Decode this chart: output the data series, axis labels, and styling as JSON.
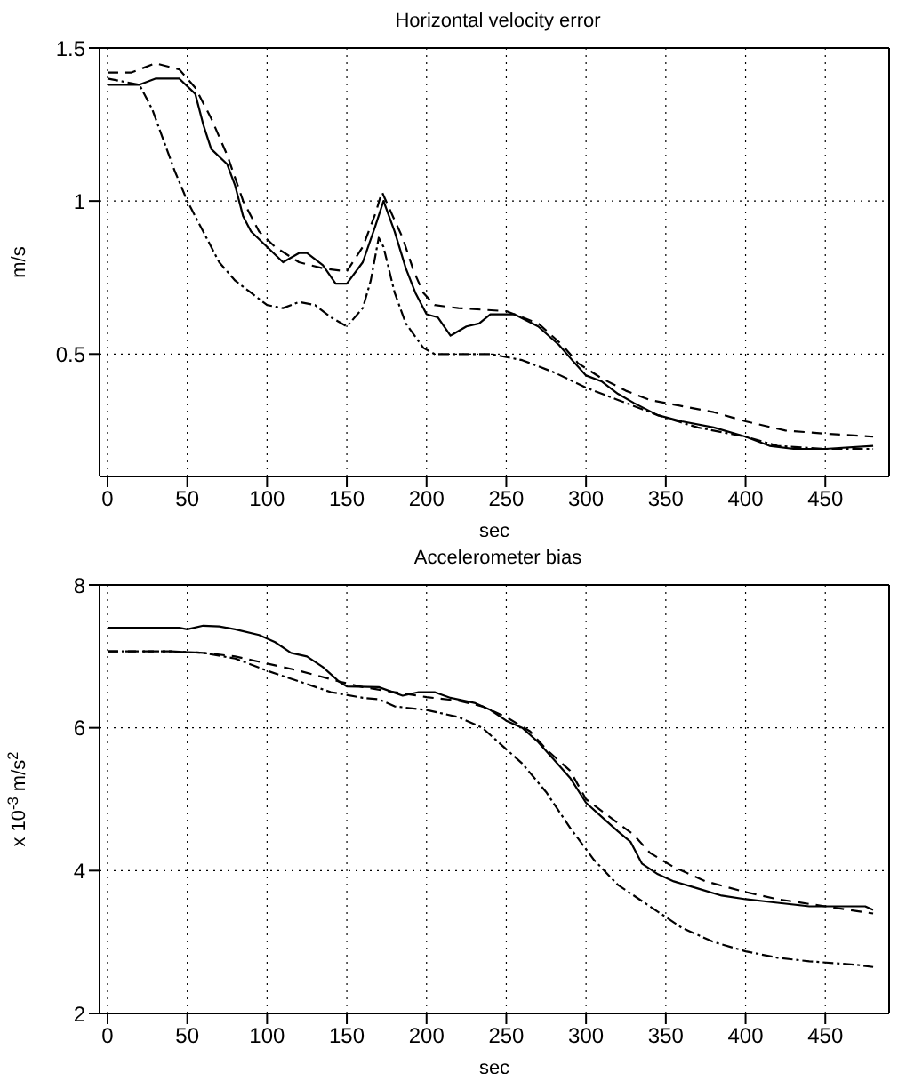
{
  "chart_data": [
    {
      "type": "line",
      "title": "Horizontal velocity error",
      "xlabel": "sec",
      "ylabel": "m/s",
      "xlim": [
        -5,
        490
      ],
      "ylim": [
        0.1,
        1.5
      ],
      "xticks": [
        0,
        50,
        100,
        150,
        200,
        250,
        300,
        350,
        400,
        450
      ],
      "yticks": [
        0.5,
        1,
        1.5
      ],
      "grid": true,
      "marker": "none",
      "series": [
        {
          "color": "#000000",
          "line_style": "solid",
          "x": [
            0,
            20,
            30,
            45,
            55,
            60,
            65,
            75,
            80,
            85,
            90,
            100,
            110,
            120,
            125,
            135,
            143,
            150,
            160,
            168,
            173,
            180,
            187,
            193,
            200,
            207,
            215,
            225,
            233,
            240,
            255,
            270,
            283,
            293,
            300,
            310,
            320,
            330,
            345,
            360,
            380,
            400,
            415,
            430,
            450,
            480
          ],
          "values": [
            1.38,
            1.38,
            1.4,
            1.4,
            1.35,
            1.25,
            1.17,
            1.12,
            1.05,
            0.95,
            0.9,
            0.85,
            0.8,
            0.83,
            0.83,
            0.79,
            0.73,
            0.73,
            0.8,
            0.92,
            1.0,
            0.9,
            0.78,
            0.7,
            0.63,
            0.62,
            0.56,
            0.59,
            0.6,
            0.63,
            0.63,
            0.59,
            0.53,
            0.47,
            0.43,
            0.41,
            0.37,
            0.34,
            0.3,
            0.28,
            0.26,
            0.23,
            0.2,
            0.19,
            0.19,
            0.2
          ]
        },
        {
          "color": "#000000",
          "line_style": "dashed",
          "x": [
            0,
            15,
            30,
            45,
            55,
            65,
            75,
            85,
            95,
            105,
            120,
            135,
            150,
            160,
            168,
            172,
            178,
            185,
            192,
            198,
            205,
            220,
            250,
            270,
            285,
            295,
            310,
            325,
            340,
            360,
            380,
            400,
            425,
            450,
            480
          ],
          "values": [
            1.42,
            1.42,
            1.45,
            1.43,
            1.37,
            1.27,
            1.15,
            1.0,
            0.9,
            0.85,
            0.8,
            0.78,
            0.77,
            0.85,
            0.96,
            1.03,
            0.96,
            0.88,
            0.77,
            0.7,
            0.66,
            0.65,
            0.64,
            0.6,
            0.53,
            0.47,
            0.42,
            0.38,
            0.35,
            0.33,
            0.31,
            0.28,
            0.25,
            0.24,
            0.23
          ]
        },
        {
          "color": "#000000",
          "line_style": "dashdot",
          "x": [
            0,
            20,
            28,
            35,
            42,
            50,
            60,
            70,
            80,
            90,
            100,
            110,
            120,
            130,
            140,
            150,
            160,
            165,
            170,
            173,
            180,
            187,
            198,
            205,
            220,
            240,
            260,
            280,
            300,
            320,
            345,
            370,
            400,
            420,
            450,
            480
          ],
          "values": [
            1.4,
            1.38,
            1.3,
            1.2,
            1.1,
            1.0,
            0.9,
            0.8,
            0.74,
            0.7,
            0.66,
            0.65,
            0.67,
            0.66,
            0.62,
            0.59,
            0.65,
            0.74,
            0.88,
            0.85,
            0.7,
            0.6,
            0.52,
            0.5,
            0.5,
            0.5,
            0.48,
            0.44,
            0.39,
            0.35,
            0.3,
            0.26,
            0.23,
            0.2,
            0.19,
            0.19
          ]
        }
      ]
    },
    {
      "type": "line",
      "title": "Accelerometer bias",
      "xlabel": "sec",
      "ylabel": "x 10$^{-3}$ m/s$^{2}$",
      "xlim": [
        -5,
        490
      ],
      "ylim": [
        2,
        8
      ],
      "xticks": [
        0,
        50,
        100,
        150,
        200,
        250,
        300,
        350,
        400,
        450
      ],
      "yticks": [
        2,
        4,
        6,
        8
      ],
      "grid": true,
      "marker": "none",
      "series": [
        {
          "color": "#000000",
          "line_style": "solid",
          "x": [
            0,
            45,
            50,
            60,
            70,
            80,
            95,
            105,
            115,
            125,
            135,
            145,
            150,
            170,
            185,
            195,
            205,
            215,
            230,
            240,
            250,
            260,
            270,
            280,
            290,
            300,
            310,
            320,
            328,
            335,
            345,
            355,
            370,
            385,
            400,
            420,
            440,
            460,
            475,
            480
          ],
          "values": [
            7.4,
            7.4,
            7.38,
            7.43,
            7.42,
            7.38,
            7.3,
            7.2,
            7.05,
            7.0,
            6.85,
            6.65,
            6.58,
            6.57,
            6.45,
            6.5,
            6.5,
            6.42,
            6.35,
            6.25,
            6.1,
            6.0,
            5.8,
            5.55,
            5.3,
            4.95,
            4.75,
            4.55,
            4.4,
            4.1,
            3.95,
            3.85,
            3.75,
            3.65,
            3.6,
            3.55,
            3.5,
            3.5,
            3.5,
            3.45
          ]
        },
        {
          "color": "#000000",
          "line_style": "dashed",
          "x": [
            0,
            40,
            60,
            80,
            100,
            120,
            145,
            160,
            180,
            200,
            220,
            235,
            250,
            265,
            275,
            290,
            300,
            315,
            330,
            340,
            355,
            375,
            400,
            420,
            450,
            480
          ],
          "values": [
            7.07,
            7.07,
            7.05,
            7.0,
            6.9,
            6.8,
            6.65,
            6.57,
            6.5,
            6.43,
            6.38,
            6.3,
            6.15,
            5.95,
            5.7,
            5.4,
            5.0,
            4.75,
            4.5,
            4.25,
            4.05,
            3.85,
            3.7,
            3.6,
            3.5,
            3.4
          ]
        },
        {
          "color": "#000000",
          "line_style": "dashdot",
          "x": [
            0,
            40,
            60,
            80,
            100,
            120,
            140,
            160,
            170,
            180,
            200,
            220,
            235,
            245,
            260,
            275,
            290,
            305,
            320,
            340,
            360,
            380,
            400,
            420,
            440,
            470,
            480
          ],
          "values": [
            7.07,
            7.07,
            7.05,
            6.97,
            6.8,
            6.65,
            6.5,
            6.42,
            6.4,
            6.3,
            6.25,
            6.15,
            6.0,
            5.8,
            5.5,
            5.1,
            4.6,
            4.15,
            3.8,
            3.5,
            3.2,
            3.0,
            2.87,
            2.78,
            2.73,
            2.68,
            2.65
          ]
        }
      ]
    }
  ]
}
